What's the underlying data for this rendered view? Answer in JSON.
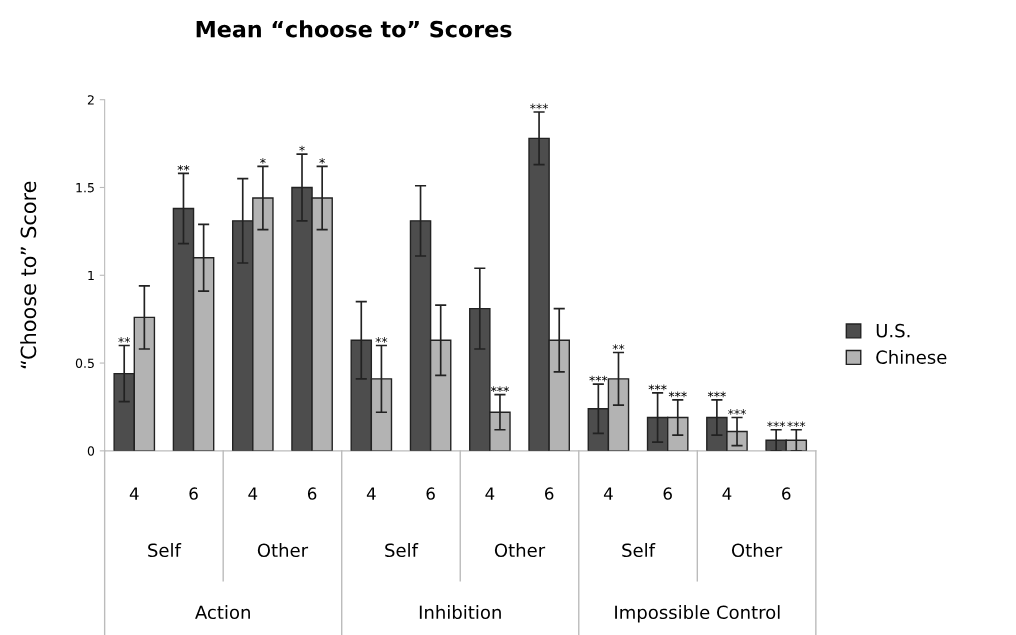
{
  "chart_data": {
    "type": "bar",
    "title": "Mean “choose to” Scores",
    "ylabel": "“Choose to” Score",
    "categories": [
      "4",
      "6",
      "4",
      "6",
      "4",
      "6",
      "4",
      "6",
      "4",
      "6",
      "4",
      "6"
    ],
    "series": [
      {
        "name": "U.S.",
        "color": "#4d4d4d",
        "values": [
          0.44,
          1.38,
          1.31,
          1.5,
          0.63,
          1.31,
          0.81,
          1.78,
          0.24,
          0.19,
          0.19,
          0.06
        ],
        "errors": [
          0.16,
          0.2,
          0.24,
          0.19,
          0.22,
          0.2,
          0.23,
          0.15,
          0.14,
          0.14,
          0.1,
          0.06
        ],
        "value_labels": [
          "**",
          "**",
          null,
          "*",
          null,
          null,
          null,
          "***",
          "***",
          "***",
          "***",
          "***"
        ]
      },
      {
        "name": "Chinese",
        "color": "#b3b3b3",
        "values": [
          0.76,
          1.1,
          1.44,
          1.44,
          0.41,
          0.63,
          0.22,
          0.63,
          0.41,
          0.19,
          0.11,
          0.06
        ],
        "errors": [
          0.18,
          0.19,
          0.18,
          0.18,
          0.19,
          0.2,
          0.1,
          0.18,
          0.15,
          0.1,
          0.08,
          0.06
        ],
        "value_labels": [
          null,
          null,
          "*",
          "*",
          "**",
          null,
          "***",
          null,
          "**",
          "***",
          "***",
          "***"
        ]
      }
    ],
    "annotations": [
      "Self",
      "Other",
      "Self",
      "Other",
      "Self",
      "Other",
      "Action",
      "Inhibition",
      "Impossible Control"
    ],
    "ylim": [
      0,
      2
    ],
    "yticks": [
      0,
      0.5,
      1,
      1.5,
      2
    ],
    "grid": false,
    "legend": "right"
  }
}
